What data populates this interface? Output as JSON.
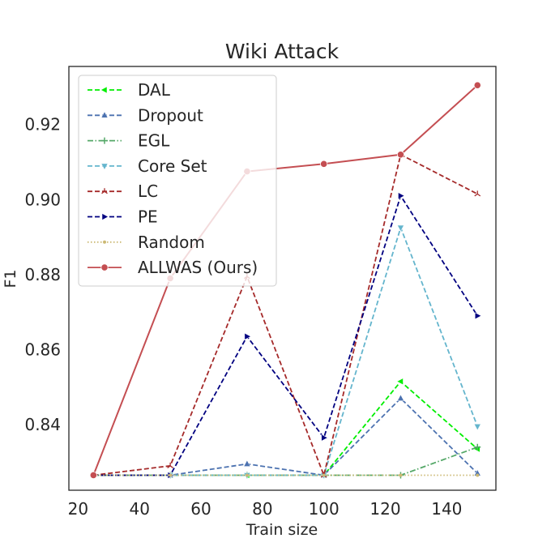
{
  "chart_data": {
    "type": "line",
    "title": "Wiki Attack",
    "xlabel": "Train size",
    "ylabel": "F1",
    "xlim": [
      17,
      156
    ],
    "ylim": [
      0.8225,
      0.9355
    ],
    "xticks": [
      20,
      40,
      60,
      80,
      100,
      120,
      140
    ],
    "yticks": [
      0.84,
      0.86,
      0.88,
      0.9,
      0.92
    ],
    "grid": false,
    "legend_position": "top-left",
    "series": [
      {
        "name": "DAL",
        "color": "#00ee00",
        "dash": "dashed",
        "marker": "triangle-left",
        "x": [
          25,
          50,
          75,
          100,
          125,
          150
        ],
        "y": [
          0.8265,
          0.8265,
          0.8265,
          0.8265,
          0.8515,
          0.8335
        ]
      },
      {
        "name": "Dropout",
        "color": "#4c72b0",
        "dash": "dashed",
        "marker": "triangle-up",
        "x": [
          25,
          50,
          75,
          100,
          125,
          150
        ],
        "y": [
          0.8265,
          0.8265,
          0.8295,
          0.8265,
          0.847,
          0.827
        ]
      },
      {
        "name": "EGL",
        "color": "#55a868",
        "dash": "dashdot",
        "marker": "plus",
        "x": [
          25,
          50,
          75,
          100,
          125,
          150
        ],
        "y": [
          0.8265,
          0.8265,
          0.8265,
          0.8265,
          0.8265,
          0.834
        ]
      },
      {
        "name": "Core Set",
        "color": "#64b5cd",
        "dash": "dashed",
        "marker": "triangle-down",
        "x": [
          25,
          50,
          75,
          100,
          125,
          150
        ],
        "y": [
          0.8265,
          0.8265,
          0.8265,
          0.8265,
          0.8925,
          0.8395
        ]
      },
      {
        "name": "LC",
        "color": "#a52a2a",
        "dash": "dashed",
        "marker": "tri",
        "x": [
          25,
          50,
          75,
          100,
          125,
          150
        ],
        "y": [
          0.8265,
          0.829,
          0.8795,
          0.8265,
          0.912,
          0.9015
        ]
      },
      {
        "name": "PE",
        "color": "#000080",
        "dash": "dashed",
        "marker": "triangle-right",
        "x": [
          25,
          50,
          75,
          100,
          125,
          150
        ],
        "y": [
          0.8265,
          0.8265,
          0.8635,
          0.8365,
          0.901,
          0.869
        ]
      },
      {
        "name": "Random",
        "color": "#ccb974",
        "dash": "dotted",
        "marker": "small-dot",
        "x": [
          25,
          50,
          75,
          100,
          125,
          150
        ],
        "y": [
          0.8265,
          0.8265,
          0.8265,
          0.8265,
          0.8265,
          0.8265
        ]
      },
      {
        "name": "ALLWAS (Ours)",
        "color": "#c44e52",
        "dash": "solid",
        "marker": "circle",
        "x": [
          25,
          50,
          75,
          100,
          125,
          150
        ],
        "y": [
          0.8265,
          0.879,
          0.9075,
          0.9095,
          0.912,
          0.9305
        ]
      }
    ]
  }
}
